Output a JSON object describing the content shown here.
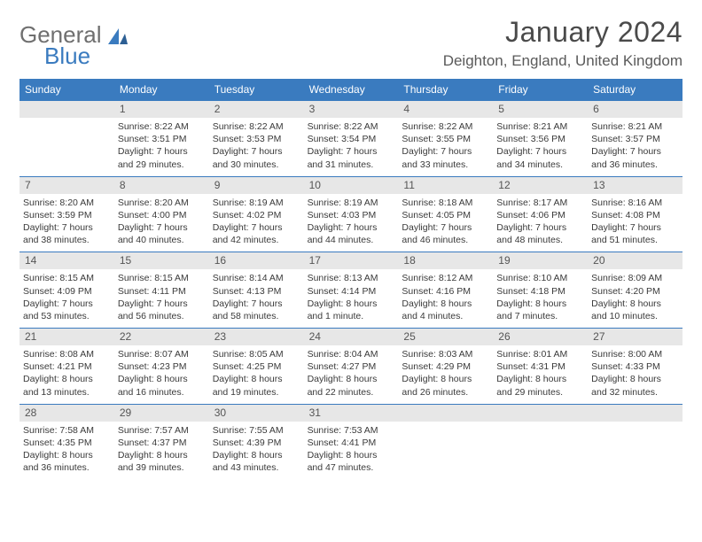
{
  "brand": {
    "part1": "General",
    "part2": "Blue"
  },
  "title": "January 2024",
  "location": "Deighton, England, United Kingdom",
  "colors": {
    "header_bg": "#3a7bbf",
    "header_text": "#ffffff",
    "daynum_bg": "#e7e7e7",
    "week_border": "#3a7bbf",
    "text": "#3a3a3a",
    "logo_gray": "#6f6f6f",
    "logo_blue": "#3a7bbf"
  },
  "fonts": {
    "title_size_pt": 24,
    "location_size_pt": 13,
    "header_size_pt": 9,
    "daynum_size_pt": 9,
    "body_size_pt": 8
  },
  "day_names": [
    "Sunday",
    "Monday",
    "Tuesday",
    "Wednesday",
    "Thursday",
    "Friday",
    "Saturday"
  ],
  "weeks": [
    [
      {
        "n": "",
        "sr": "",
        "ss": "",
        "dl1": "",
        "dl2": ""
      },
      {
        "n": "1",
        "sr": "Sunrise: 8:22 AM",
        "ss": "Sunset: 3:51 PM",
        "dl1": "Daylight: 7 hours",
        "dl2": "and 29 minutes."
      },
      {
        "n": "2",
        "sr": "Sunrise: 8:22 AM",
        "ss": "Sunset: 3:53 PM",
        "dl1": "Daylight: 7 hours",
        "dl2": "and 30 minutes."
      },
      {
        "n": "3",
        "sr": "Sunrise: 8:22 AM",
        "ss": "Sunset: 3:54 PM",
        "dl1": "Daylight: 7 hours",
        "dl2": "and 31 minutes."
      },
      {
        "n": "4",
        "sr": "Sunrise: 8:22 AM",
        "ss": "Sunset: 3:55 PM",
        "dl1": "Daylight: 7 hours",
        "dl2": "and 33 minutes."
      },
      {
        "n": "5",
        "sr": "Sunrise: 8:21 AM",
        "ss": "Sunset: 3:56 PM",
        "dl1": "Daylight: 7 hours",
        "dl2": "and 34 minutes."
      },
      {
        "n": "6",
        "sr": "Sunrise: 8:21 AM",
        "ss": "Sunset: 3:57 PM",
        "dl1": "Daylight: 7 hours",
        "dl2": "and 36 minutes."
      }
    ],
    [
      {
        "n": "7",
        "sr": "Sunrise: 8:20 AM",
        "ss": "Sunset: 3:59 PM",
        "dl1": "Daylight: 7 hours",
        "dl2": "and 38 minutes."
      },
      {
        "n": "8",
        "sr": "Sunrise: 8:20 AM",
        "ss": "Sunset: 4:00 PM",
        "dl1": "Daylight: 7 hours",
        "dl2": "and 40 minutes."
      },
      {
        "n": "9",
        "sr": "Sunrise: 8:19 AM",
        "ss": "Sunset: 4:02 PM",
        "dl1": "Daylight: 7 hours",
        "dl2": "and 42 minutes."
      },
      {
        "n": "10",
        "sr": "Sunrise: 8:19 AM",
        "ss": "Sunset: 4:03 PM",
        "dl1": "Daylight: 7 hours",
        "dl2": "and 44 minutes."
      },
      {
        "n": "11",
        "sr": "Sunrise: 8:18 AM",
        "ss": "Sunset: 4:05 PM",
        "dl1": "Daylight: 7 hours",
        "dl2": "and 46 minutes."
      },
      {
        "n": "12",
        "sr": "Sunrise: 8:17 AM",
        "ss": "Sunset: 4:06 PM",
        "dl1": "Daylight: 7 hours",
        "dl2": "and 48 minutes."
      },
      {
        "n": "13",
        "sr": "Sunrise: 8:16 AM",
        "ss": "Sunset: 4:08 PM",
        "dl1": "Daylight: 7 hours",
        "dl2": "and 51 minutes."
      }
    ],
    [
      {
        "n": "14",
        "sr": "Sunrise: 8:15 AM",
        "ss": "Sunset: 4:09 PM",
        "dl1": "Daylight: 7 hours",
        "dl2": "and 53 minutes."
      },
      {
        "n": "15",
        "sr": "Sunrise: 8:15 AM",
        "ss": "Sunset: 4:11 PM",
        "dl1": "Daylight: 7 hours",
        "dl2": "and 56 minutes."
      },
      {
        "n": "16",
        "sr": "Sunrise: 8:14 AM",
        "ss": "Sunset: 4:13 PM",
        "dl1": "Daylight: 7 hours",
        "dl2": "and 58 minutes."
      },
      {
        "n": "17",
        "sr": "Sunrise: 8:13 AM",
        "ss": "Sunset: 4:14 PM",
        "dl1": "Daylight: 8 hours",
        "dl2": "and 1 minute."
      },
      {
        "n": "18",
        "sr": "Sunrise: 8:12 AM",
        "ss": "Sunset: 4:16 PM",
        "dl1": "Daylight: 8 hours",
        "dl2": "and 4 minutes."
      },
      {
        "n": "19",
        "sr": "Sunrise: 8:10 AM",
        "ss": "Sunset: 4:18 PM",
        "dl1": "Daylight: 8 hours",
        "dl2": "and 7 minutes."
      },
      {
        "n": "20",
        "sr": "Sunrise: 8:09 AM",
        "ss": "Sunset: 4:20 PM",
        "dl1": "Daylight: 8 hours",
        "dl2": "and 10 minutes."
      }
    ],
    [
      {
        "n": "21",
        "sr": "Sunrise: 8:08 AM",
        "ss": "Sunset: 4:21 PM",
        "dl1": "Daylight: 8 hours",
        "dl2": "and 13 minutes."
      },
      {
        "n": "22",
        "sr": "Sunrise: 8:07 AM",
        "ss": "Sunset: 4:23 PM",
        "dl1": "Daylight: 8 hours",
        "dl2": "and 16 minutes."
      },
      {
        "n": "23",
        "sr": "Sunrise: 8:05 AM",
        "ss": "Sunset: 4:25 PM",
        "dl1": "Daylight: 8 hours",
        "dl2": "and 19 minutes."
      },
      {
        "n": "24",
        "sr": "Sunrise: 8:04 AM",
        "ss": "Sunset: 4:27 PM",
        "dl1": "Daylight: 8 hours",
        "dl2": "and 22 minutes."
      },
      {
        "n": "25",
        "sr": "Sunrise: 8:03 AM",
        "ss": "Sunset: 4:29 PM",
        "dl1": "Daylight: 8 hours",
        "dl2": "and 26 minutes."
      },
      {
        "n": "26",
        "sr": "Sunrise: 8:01 AM",
        "ss": "Sunset: 4:31 PM",
        "dl1": "Daylight: 8 hours",
        "dl2": "and 29 minutes."
      },
      {
        "n": "27",
        "sr": "Sunrise: 8:00 AM",
        "ss": "Sunset: 4:33 PM",
        "dl1": "Daylight: 8 hours",
        "dl2": "and 32 minutes."
      }
    ],
    [
      {
        "n": "28",
        "sr": "Sunrise: 7:58 AM",
        "ss": "Sunset: 4:35 PM",
        "dl1": "Daylight: 8 hours",
        "dl2": "and 36 minutes."
      },
      {
        "n": "29",
        "sr": "Sunrise: 7:57 AM",
        "ss": "Sunset: 4:37 PM",
        "dl1": "Daylight: 8 hours",
        "dl2": "and 39 minutes."
      },
      {
        "n": "30",
        "sr": "Sunrise: 7:55 AM",
        "ss": "Sunset: 4:39 PM",
        "dl1": "Daylight: 8 hours",
        "dl2": "and 43 minutes."
      },
      {
        "n": "31",
        "sr": "Sunrise: 7:53 AM",
        "ss": "Sunset: 4:41 PM",
        "dl1": "Daylight: 8 hours",
        "dl2": "and 47 minutes."
      },
      {
        "n": "",
        "sr": "",
        "ss": "",
        "dl1": "",
        "dl2": ""
      },
      {
        "n": "",
        "sr": "",
        "ss": "",
        "dl1": "",
        "dl2": ""
      },
      {
        "n": "",
        "sr": "",
        "ss": "",
        "dl1": "",
        "dl2": ""
      }
    ]
  ]
}
